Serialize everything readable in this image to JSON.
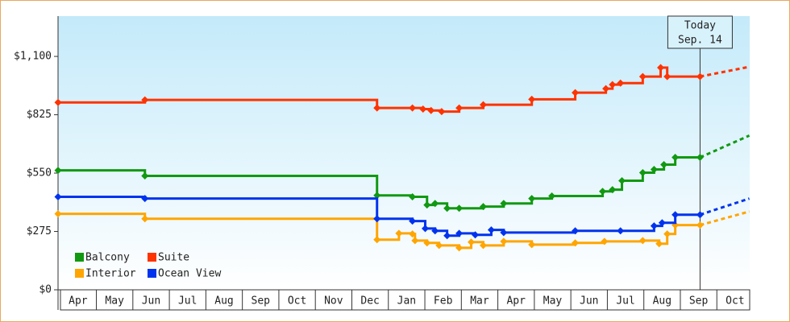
{
  "chart_data": {
    "type": "line",
    "step": true,
    "xlim": [
      -0.55,
      18.4
    ],
    "xticks": [
      {
        "value": 0,
        "label": "Apr"
      },
      {
        "value": 1,
        "label": "May"
      },
      {
        "value": 2,
        "label": "Jun"
      },
      {
        "value": 3,
        "label": "Jul"
      },
      {
        "value": 4,
        "label": "Aug"
      },
      {
        "value": 5,
        "label": "Sep"
      },
      {
        "value": 6,
        "label": "Oct"
      },
      {
        "value": 7,
        "label": "Nov"
      },
      {
        "value": 8,
        "label": "Dec"
      },
      {
        "value": 9,
        "label": "Jan"
      },
      {
        "value": 10,
        "label": "Feb"
      },
      {
        "value": 11,
        "label": "Mar"
      },
      {
        "value": 12,
        "label": "Apr"
      },
      {
        "value": 13,
        "label": "May"
      },
      {
        "value": 14,
        "label": "Jun"
      },
      {
        "value": 15,
        "label": "Jul"
      },
      {
        "value": 16,
        "label": "Aug"
      },
      {
        "value": 17,
        "label": "Sep"
      },
      {
        "value": 18,
        "label": "Oct"
      }
    ],
    "ylim": [
      0,
      1290
    ],
    "yticks": [
      {
        "value": 0,
        "label": "$0"
      },
      {
        "value": 275,
        "label": "$275"
      },
      {
        "value": 550,
        "label": "$550"
      },
      {
        "value": 825,
        "label": "$825"
      },
      {
        "value": 1100,
        "label": "$1,100"
      }
    ],
    "annotation": {
      "x": 17.04,
      "lines": [
        "Today",
        "Sep. 14"
      ]
    },
    "legend": "lower left",
    "series": [
      {
        "name": "Balcony",
        "color": "#119911",
        "x": [
          -0.55,
          1.83,
          8.19,
          9.16,
          9.56,
          9.78,
          10.11,
          10.44,
          11.1,
          11.66,
          12.43,
          12.98,
          14.37,
          14.64,
          14.9,
          15.47,
          15.78,
          16.05,
          16.36,
          17.04,
          18.39
        ],
        "values": [
          563,
          537,
          445,
          438,
          400,
          407,
          384,
          384,
          392,
          407,
          430,
          442,
          464,
          472,
          514,
          552,
          567,
          590,
          624,
          624,
          727
        ]
      },
      {
        "name": "Suite",
        "color": "#ff3300",
        "x": [
          -0.55,
          1.83,
          8.19,
          9.16,
          9.45,
          9.67,
          9.96,
          10.44,
          11.1,
          12.43,
          13.62,
          14.46,
          14.64,
          14.86,
          15.47,
          15.96,
          16.14,
          17.04,
          18.39
        ],
        "values": [
          883,
          895,
          857,
          857,
          852,
          845,
          840,
          857,
          872,
          898,
          929,
          948,
          967,
          974,
          1005,
          1047,
          1005,
          1005,
          1051
        ]
      },
      {
        "name": "Interior",
        "color": "#ffa500",
        "x": [
          -0.55,
          1.83,
          8.19,
          8.79,
          9.16,
          9.23,
          9.56,
          9.89,
          10.44,
          10.77,
          11.1,
          11.66,
          12.43,
          13.62,
          14.42,
          15.47,
          15.92,
          16.14,
          16.36,
          17.04,
          18.39
        ],
        "values": [
          358,
          335,
          236,
          266,
          263,
          232,
          221,
          209,
          198,
          225,
          209,
          228,
          213,
          221,
          228,
          232,
          217,
          263,
          305,
          305,
          369
        ]
      },
      {
        "name": "Ocean View",
        "color": "#0033ee",
        "x": [
          -0.55,
          1.83,
          8.19,
          9.16,
          9.51,
          9.78,
          10.11,
          10.44,
          10.88,
          11.32,
          11.66,
          13.62,
          14.86,
          15.78,
          16.0,
          16.36,
          17.04,
          18.39
        ],
        "values": [
          438,
          430,
          335,
          324,
          289,
          278,
          255,
          266,
          259,
          282,
          270,
          278,
          278,
          301,
          316,
          354,
          354,
          430
        ]
      }
    ]
  }
}
